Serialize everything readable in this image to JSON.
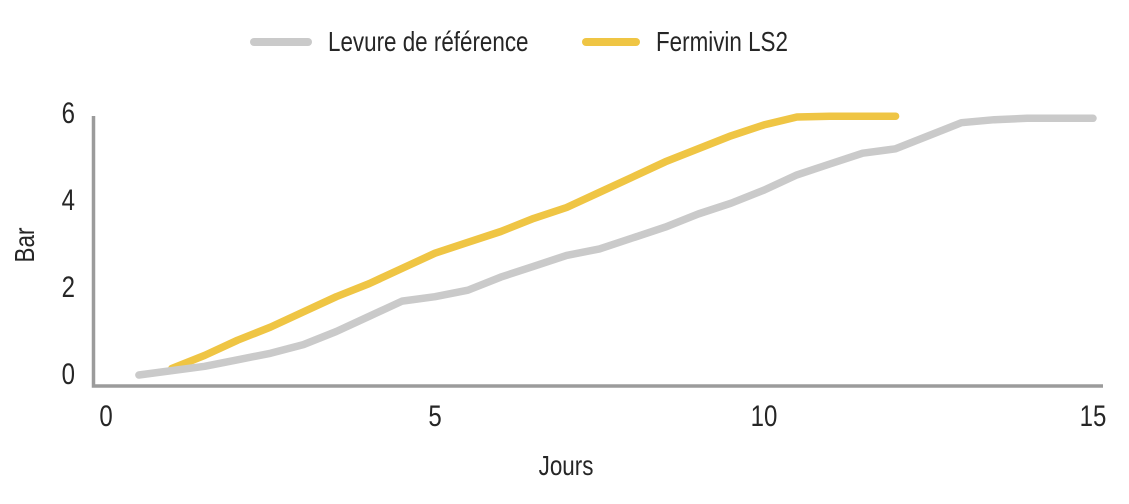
{
  "colors": {
    "background": "#ffffff",
    "axis": "#9b9b9b",
    "text": "#262626",
    "reference_gray": "#cacaca",
    "fermivin_yellow": "#efc544"
  },
  "legend": {
    "items": [
      {
        "label": "Levure de référence",
        "color": "#cacaca"
      },
      {
        "label": "Fermivin LS2",
        "color": "#efc544"
      }
    ]
  },
  "chart_data": {
    "type": "line",
    "title": "",
    "xlabel": "Jours",
    "ylabel": "Bar",
    "xlim": [
      0,
      15
    ],
    "ylim": [
      0,
      6
    ],
    "x_ticks": [
      "0",
      "5",
      "10",
      "15"
    ],
    "y_ticks": [
      "0",
      "2",
      "4",
      "6"
    ],
    "grid": false,
    "legend_position": "top-center",
    "series": [
      {
        "name": "Fermivin LS2",
        "color": "#efc544",
        "points": [
          [
            1,
            0.15
          ],
          [
            1.5,
            0.45
          ],
          [
            2,
            0.8
          ],
          [
            2.5,
            1.1
          ],
          [
            3,
            1.45
          ],
          [
            3.5,
            1.8
          ],
          [
            4,
            2.1
          ],
          [
            4.5,
            2.45
          ],
          [
            5,
            2.8
          ],
          [
            5.5,
            3.05
          ],
          [
            6,
            3.3
          ],
          [
            6.5,
            3.6
          ],
          [
            7,
            3.85
          ],
          [
            7.5,
            4.2
          ],
          [
            8,
            4.55
          ],
          [
            8.5,
            4.9
          ],
          [
            9,
            5.2
          ],
          [
            9.5,
            5.5
          ],
          [
            10,
            5.75
          ],
          [
            10.5,
            5.93
          ],
          [
            11,
            5.95
          ],
          [
            11.5,
            5.95
          ],
          [
            12,
            5.95
          ]
        ]
      },
      {
        "name": "Levure de référence",
        "color": "#cacaca",
        "points": [
          [
            0.5,
            0
          ],
          [
            1,
            0.1
          ],
          [
            1.5,
            0.2
          ],
          [
            2,
            0.35
          ],
          [
            2.5,
            0.5
          ],
          [
            3,
            0.7
          ],
          [
            3.5,
            1.0
          ],
          [
            4,
            1.35
          ],
          [
            4.5,
            1.7
          ],
          [
            5,
            1.8
          ],
          [
            5.5,
            1.95
          ],
          [
            6,
            2.25
          ],
          [
            6.5,
            2.5
          ],
          [
            7,
            2.75
          ],
          [
            7.5,
            2.9
          ],
          [
            8,
            3.15
          ],
          [
            8.5,
            3.4
          ],
          [
            9,
            3.7
          ],
          [
            9.5,
            3.95
          ],
          [
            10,
            4.25
          ],
          [
            10.5,
            4.6
          ],
          [
            11,
            4.85
          ],
          [
            11.5,
            5.1
          ],
          [
            12,
            5.2
          ],
          [
            12.5,
            5.5
          ],
          [
            13,
            5.8
          ],
          [
            13.5,
            5.87
          ],
          [
            14,
            5.9
          ],
          [
            14.5,
            5.9
          ],
          [
            15,
            5.9
          ]
        ]
      }
    ]
  }
}
